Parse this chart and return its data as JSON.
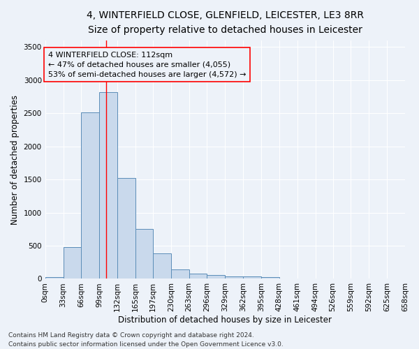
{
  "title_line1": "4, WINTERFIELD CLOSE, GLENFIELD, LEICESTER, LE3 8RR",
  "title_line2": "Size of property relative to detached houses in Leicester",
  "xlabel": "Distribution of detached houses by size in Leicester",
  "ylabel": "Number of detached properties",
  "bar_color": "#c9d9ec",
  "bar_edge_color": "#5b8db8",
  "bin_edges": [
    0,
    33,
    66,
    99,
    132,
    165,
    197,
    230,
    263,
    296,
    329,
    362,
    395,
    428,
    461,
    494,
    526,
    559,
    592,
    625,
    658
  ],
  "bar_heights": [
    30,
    480,
    2510,
    2820,
    1520,
    750,
    385,
    145,
    75,
    55,
    40,
    40,
    30,
    0,
    0,
    0,
    0,
    0,
    0,
    0
  ],
  "tick_labels": [
    "0sqm",
    "33sqm",
    "66sqm",
    "99sqm",
    "132sqm",
    "165sqm",
    "197sqm",
    "230sqm",
    "263sqm",
    "296sqm",
    "329sqm",
    "362sqm",
    "395sqm",
    "428sqm",
    "461sqm",
    "494sqm",
    "526sqm",
    "559sqm",
    "592sqm",
    "625sqm",
    "658sqm"
  ],
  "vline_x": 112,
  "annotation_text": "4 WINTERFIELD CLOSE: 112sqm\n← 47% of detached houses are smaller (4,055)\n53% of semi-detached houses are larger (4,572) →",
  "ylim": [
    0,
    3600
  ],
  "yticks": [
    0,
    500,
    1000,
    1500,
    2000,
    2500,
    3000,
    3500
  ],
  "footnote_line1": "Contains HM Land Registry data © Crown copyright and database right 2024.",
  "footnote_line2": "Contains public sector information licensed under the Open Government Licence v3.0.",
  "background_color": "#edf2f9",
  "grid_color": "#ffffff",
  "title1_fontsize": 10,
  "title2_fontsize": 9,
  "axis_label_fontsize": 8.5,
  "tick_fontsize": 7.5,
  "annotation_fontsize": 8,
  "footnote_fontsize": 6.5
}
